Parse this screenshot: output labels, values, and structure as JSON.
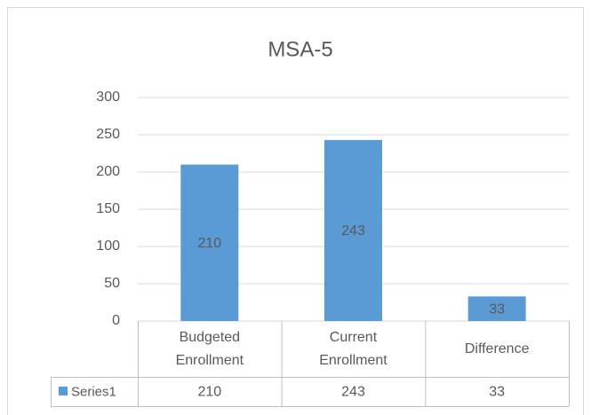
{
  "chart_data": {
    "type": "bar",
    "title": "MSA-5",
    "categories": [
      "Budgeted Enrollment",
      "Current Enrollment",
      "Difference"
    ],
    "series": [
      {
        "name": "Series1",
        "color": "#5b9bd5",
        "values": [
          210,
          243,
          33
        ]
      }
    ],
    "ylim": [
      0,
      300
    ],
    "yticks": [
      0,
      50,
      100,
      150,
      200,
      250,
      300
    ],
    "grid": true,
    "data_table": true
  }
}
